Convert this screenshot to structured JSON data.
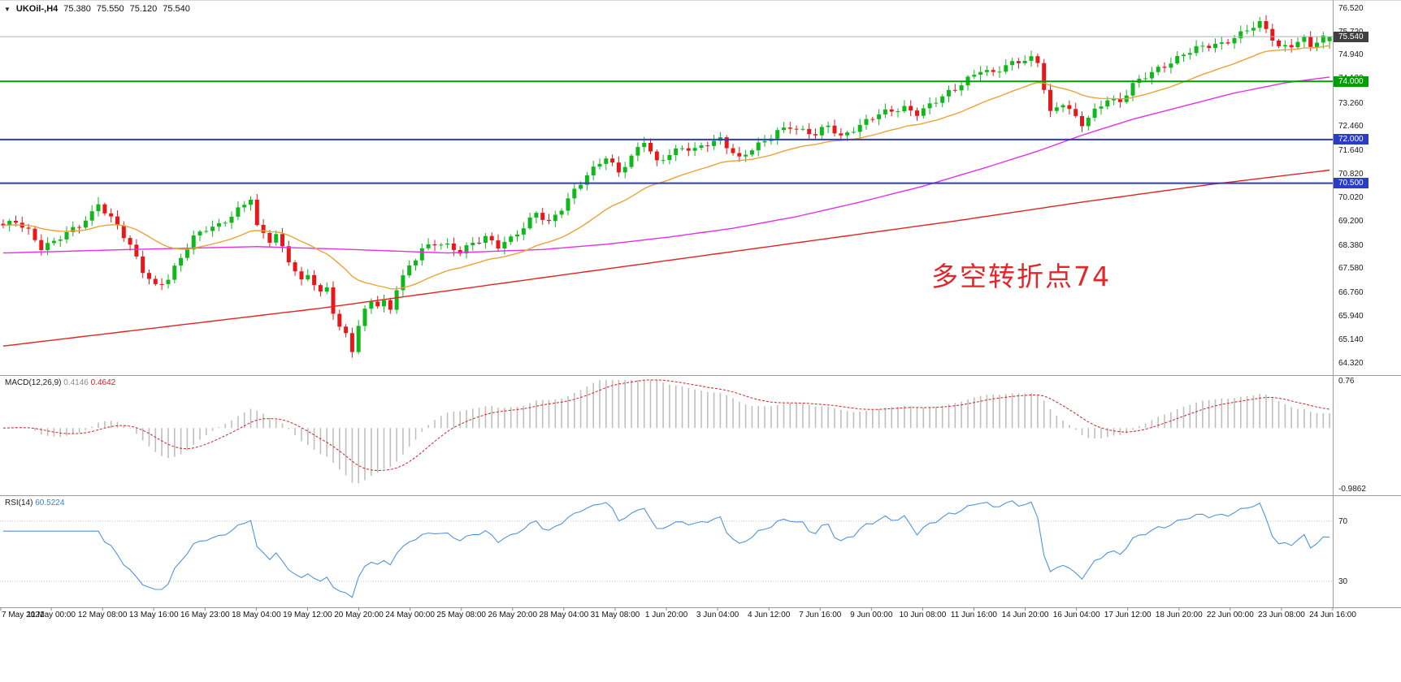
{
  "window": {
    "bg": "#ffffff",
    "top_border": "#d9d9d9"
  },
  "header": {
    "symbol": "UKOil-,H4",
    "open": "75.380",
    "high": "75.550",
    "low": "75.120",
    "close": "75.540"
  },
  "annotation": {
    "text": "多空转折点74",
    "color": "#e0272c"
  },
  "macd_panel": {
    "name": "MACD(12,26,9)",
    "value": "0.4146",
    "signal_value": "0.4642",
    "axis_max": "0.76",
    "axis_min": "-0.9862"
  },
  "rsi_panel": {
    "name": "RSI(14)",
    "value": "60.5224",
    "level_upper": "70",
    "level_lower": "30"
  },
  "chart_data": {
    "type": "candlestick",
    "symbol": "UKOil-",
    "timeframe": "H4",
    "bars": 210,
    "current_bar": {
      "open": 75.38,
      "high": 75.55,
      "low": 75.12,
      "close": 75.54
    },
    "price_axis": {
      "max": 76.52,
      "min": 64.32,
      "ticks": [
        "76.520",
        "75.720",
        "74.940",
        "74.120",
        "73.260",
        "72.460",
        "71.640",
        "70.820",
        "70.020",
        "69.200",
        "68.380",
        "67.580",
        "66.760",
        "65.940",
        "65.140",
        "64.320"
      ]
    },
    "close_keyframes": [
      [
        0,
        69.0
      ],
      [
        2,
        69.2
      ],
      [
        4,
        68.9
      ],
      [
        6,
        68.3
      ],
      [
        8,
        68.45
      ],
      [
        10,
        68.75
      ],
      [
        12,
        69.05
      ],
      [
        14,
        69.5
      ],
      [
        15,
        69.85
      ],
      [
        16,
        69.55
      ],
      [
        18,
        69.0
      ],
      [
        20,
        68.3
      ],
      [
        22,
        67.5
      ],
      [
        24,
        67.0
      ],
      [
        26,
        67.25
      ],
      [
        28,
        67.9
      ],
      [
        30,
        68.6
      ],
      [
        32,
        68.95
      ],
      [
        34,
        69.1
      ],
      [
        36,
        69.4
      ],
      [
        38,
        69.75
      ],
      [
        39,
        69.95
      ],
      [
        40,
        68.95
      ],
      [
        42,
        68.55
      ],
      [
        43,
        68.75
      ],
      [
        45,
        67.9
      ],
      [
        47,
        67.1
      ],
      [
        48,
        67.35
      ],
      [
        50,
        66.65
      ],
      [
        51,
        66.9
      ],
      [
        52,
        66.1
      ],
      [
        53,
        65.55
      ],
      [
        54,
        65.35
      ],
      [
        55,
        64.82
      ],
      [
        56,
        65.6
      ],
      [
        57,
        66.1
      ],
      [
        58,
        66.45
      ],
      [
        59,
        66.25
      ],
      [
        60,
        66.35
      ],
      [
        61,
        66.15
      ],
      [
        62,
        66.9
      ],
      [
        64,
        67.7
      ],
      [
        66,
        68.25
      ],
      [
        68,
        68.4
      ],
      [
        70,
        68.3
      ],
      [
        72,
        68.15
      ],
      [
        74,
        68.5
      ],
      [
        76,
        68.65
      ],
      [
        78,
        68.3
      ],
      [
        80,
        68.55
      ],
      [
        82,
        69.0
      ],
      [
        84,
        69.55
      ],
      [
        86,
        69.15
      ],
      [
        88,
        69.6
      ],
      [
        90,
        70.2
      ],
      [
        92,
        70.8
      ],
      [
        94,
        71.25
      ],
      [
        95,
        71.45
      ],
      [
        97,
        70.85
      ],
      [
        99,
        71.35
      ],
      [
        101,
        71.95
      ],
      [
        103,
        71.25
      ],
      [
        105,
        71.55
      ],
      [
        107,
        71.7
      ],
      [
        109,
        71.6
      ],
      [
        111,
        71.85
      ],
      [
        113,
        72.05
      ],
      [
        115,
        71.6
      ],
      [
        116,
        71.35
      ],
      [
        118,
        71.65
      ],
      [
        120,
        71.9
      ],
      [
        122,
        72.3
      ],
      [
        124,
        72.5
      ],
      [
        126,
        72.3
      ],
      [
        128,
        72.15
      ],
      [
        130,
        72.45
      ],
      [
        132,
        72.1
      ],
      [
        134,
        72.4
      ],
      [
        136,
        72.65
      ],
      [
        138,
        72.85
      ],
      [
        140,
        72.95
      ],
      [
        142,
        73.1
      ],
      [
        144,
        72.95
      ],
      [
        146,
        73.2
      ],
      [
        148,
        73.45
      ],
      [
        150,
        73.7
      ],
      [
        152,
        74.1
      ],
      [
        154,
        74.45
      ],
      [
        156,
        74.3
      ],
      [
        158,
        74.5
      ],
      [
        160,
        74.65
      ],
      [
        162,
        74.8
      ],
      [
        163,
        74.7
      ],
      [
        165,
        72.95
      ],
      [
        167,
        73.25
      ],
      [
        169,
        72.7
      ],
      [
        170,
        72.5
      ],
      [
        172,
        73.0
      ],
      [
        174,
        73.45
      ],
      [
        176,
        73.3
      ],
      [
        178,
        73.85
      ],
      [
        180,
        74.15
      ],
      [
        182,
        74.45
      ],
      [
        184,
        74.7
      ],
      [
        186,
        74.95
      ],
      [
        188,
        75.1
      ],
      [
        190,
        75.2
      ],
      [
        192,
        75.3
      ],
      [
        194,
        75.55
      ],
      [
        196,
        75.8
      ],
      [
        198,
        75.95
      ],
      [
        199,
        75.75
      ],
      [
        201,
        75.15
      ],
      [
        203,
        75.3
      ],
      [
        205,
        75.5
      ],
      [
        206,
        75.25
      ],
      [
        208,
        75.45
      ],
      [
        209,
        75.54
      ]
    ],
    "wick_overrides": [
      [
        15,
        "high",
        70.02
      ],
      [
        39,
        "high",
        70.05
      ],
      [
        55,
        "low",
        64.5
      ],
      [
        197,
        "high",
        76.06
      ]
    ],
    "levels": [
      {
        "price": 74.0,
        "label": "74.000",
        "color": "#00A000"
      },
      {
        "price": 72.0,
        "label": "72.000",
        "color": "#2B3CC8"
      },
      {
        "price": 70.5,
        "label": "70.500",
        "color": "#2B3CC8"
      }
    ],
    "bid_line": {
      "price": 75.54,
      "label": "75.540",
      "line_color": "#A8B0BC",
      "badge_color": "#3F3F3F"
    },
    "moving_averages": [
      {
        "name": "fast",
        "type": "ema_of_closes",
        "period": 24,
        "color": "#EEA236"
      },
      {
        "name": "mid",
        "type": "keyframes",
        "color": "#E331E3",
        "points": [
          [
            0,
            68.1
          ],
          [
            20,
            68.22
          ],
          [
            40,
            68.32
          ],
          [
            55,
            68.22
          ],
          [
            70,
            68.1
          ],
          [
            85,
            68.22
          ],
          [
            95,
            68.4
          ],
          [
            105,
            68.65
          ],
          [
            115,
            68.95
          ],
          [
            125,
            69.35
          ],
          [
            135,
            69.85
          ],
          [
            145,
            70.4
          ],
          [
            155,
            71.05
          ],
          [
            163,
            71.6
          ],
          [
            170,
            72.15
          ],
          [
            178,
            72.7
          ],
          [
            186,
            73.15
          ],
          [
            194,
            73.6
          ],
          [
            202,
            73.95
          ],
          [
            209,
            74.15
          ]
        ]
      },
      {
        "name": "slow",
        "type": "keyframes",
        "color": "#E02424",
        "points": [
          [
            0,
            64.9
          ],
          [
            25,
            65.55
          ],
          [
            50,
            66.2
          ],
          [
            75,
            66.95
          ],
          [
            100,
            67.7
          ],
          [
            125,
            68.45
          ],
          [
            150,
            69.2
          ],
          [
            170,
            69.85
          ],
          [
            190,
            70.45
          ],
          [
            209,
            70.95
          ]
        ]
      }
    ],
    "candle_colors": {
      "up": "#10B81C",
      "down": "#E51919"
    },
    "macd": {
      "fast": 12,
      "slow": 26,
      "signal": 9,
      "value": 0.4146,
      "signal_value": 0.4642,
      "scale_max": 0.76,
      "scale_min": -0.9862,
      "hist_color": "#BFBFBF",
      "signal_color": "#D41E1E"
    },
    "rsi": {
      "period": 14,
      "value": 60.5224,
      "levels": [
        70,
        30
      ],
      "scale_max": 85,
      "scale_min": 15,
      "color": "#4F94DE"
    },
    "time_labels": [
      "7 May 2021",
      "11 May 00:00",
      "12 May 08:00",
      "13 May 16:00",
      "16 May 23:00",
      "18 May 04:00",
      "19 May 12:00",
      "20 May 20:00",
      "24 May 00:00",
      "25 May 08:00",
      "26 May 20:00",
      "28 May 04:00",
      "31 May 08:00",
      "1 Jun 20:00",
      "3 Jun 04:00",
      "4 Jun 12:00",
      "7 Jun 16:00",
      "9 Jun 00:00",
      "10 Jun 08:00",
      "11 Jun 16:00",
      "14 Jun 20:00",
      "16 Jun 04:00",
      "17 Jun 12:00",
      "18 Jun 20:00",
      "22 Jun 00:00",
      "23 Jun 08:00",
      "24 Jun 16:00"
    ]
  }
}
